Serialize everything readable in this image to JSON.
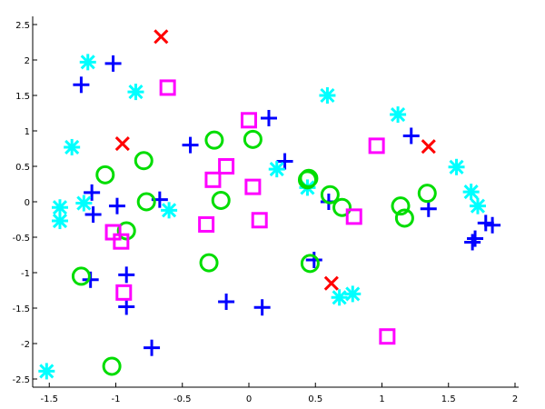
{
  "chart_data": {
    "type": "scatter",
    "title": "",
    "xlabel": "",
    "ylabel": "",
    "xlim": [
      -1.6,
      2.0
    ],
    "ylim": [
      -2.6,
      2.6
    ],
    "xticks": [
      "-1.5",
      "-1",
      "-0.5",
      "0",
      "0.5",
      "1",
      "1.5",
      "2"
    ],
    "xtick_values": [
      -1.5,
      -1,
      -0.5,
      0,
      0.5,
      1,
      1.5,
      2
    ],
    "yticks": [
      "2.5",
      "2",
      "1.5",
      "1",
      "0.5",
      "0",
      "-0.5",
      "-1",
      "-1.5",
      "-2",
      "-2.5"
    ],
    "ytick_values": [
      2.5,
      2,
      1.5,
      1,
      0.5,
      0,
      -0.5,
      -1,
      -1.5,
      -2,
      -2.5
    ],
    "grid": false,
    "legend": false,
    "series": [
      {
        "marker": "plus",
        "color": "#0000ff",
        "points": [
          [
            -1.26,
            1.65
          ],
          [
            -1.02,
            1.95
          ],
          [
            0.15,
            1.18
          ],
          [
            -0.44,
            0.8
          ],
          [
            1.22,
            0.93
          ],
          [
            0.27,
            0.57
          ],
          [
            -1.18,
            0.13
          ],
          [
            -1.17,
            -0.18
          ],
          [
            -0.99,
            -0.06
          ],
          [
            -0.67,
            0.03
          ],
          [
            0.6,
            0.0
          ],
          [
            1.35,
            -0.1
          ],
          [
            1.78,
            -0.3
          ],
          [
            1.83,
            -0.33
          ],
          [
            1.7,
            -0.52
          ],
          [
            1.68,
            -0.57
          ],
          [
            -1.19,
            -1.1
          ],
          [
            -0.92,
            -1.03
          ],
          [
            -0.92,
            -1.48
          ],
          [
            -0.17,
            -1.41
          ],
          [
            0.1,
            -1.49
          ],
          [
            0.49,
            -0.82
          ],
          [
            -0.73,
            -2.06
          ]
        ]
      },
      {
        "marker": "asterisk",
        "color": "#00ffff",
        "points": [
          [
            -1.21,
            1.97
          ],
          [
            -0.85,
            1.55
          ],
          [
            0.59,
            1.5
          ],
          [
            1.12,
            1.23
          ],
          [
            -1.33,
            0.77
          ],
          [
            1.56,
            0.49
          ],
          [
            0.21,
            0.46
          ],
          [
            0.44,
            0.2
          ],
          [
            1.67,
            0.14
          ],
          [
            1.72,
            -0.06
          ],
          [
            -1.24,
            -0.02
          ],
          [
            -1.42,
            -0.08
          ],
          [
            -1.42,
            -0.27
          ],
          [
            -0.6,
            -0.12
          ],
          [
            0.68,
            -1.35
          ],
          [
            0.78,
            -1.3
          ],
          [
            -1.52,
            -2.39
          ]
        ]
      },
      {
        "marker": "circle",
        "color": "#00dd00",
        "points": [
          [
            -0.26,
            0.87
          ],
          [
            0.03,
            0.88
          ],
          [
            -0.79,
            0.58
          ],
          [
            -1.08,
            0.38
          ],
          [
            0.45,
            0.33
          ],
          [
            0.44,
            0.31
          ],
          [
            0.61,
            0.1
          ],
          [
            0.7,
            -0.08
          ],
          [
            1.14,
            -0.06
          ],
          [
            1.34,
            0.12
          ],
          [
            1.17,
            -0.23
          ],
          [
            -0.21,
            0.02
          ],
          [
            -0.77,
            0.0
          ],
          [
            -0.92,
            -0.41
          ],
          [
            -1.26,
            -1.05
          ],
          [
            -0.3,
            -0.86
          ],
          [
            0.46,
            -0.87
          ],
          [
            -1.03,
            -2.32
          ]
        ]
      },
      {
        "marker": "square",
        "color": "#ff00ff",
        "points": [
          [
            -0.61,
            1.61
          ],
          [
            0.0,
            1.15
          ],
          [
            0.96,
            0.79
          ],
          [
            -0.17,
            0.5
          ],
          [
            -0.27,
            0.31
          ],
          [
            0.03,
            0.21
          ],
          [
            0.08,
            -0.26
          ],
          [
            -0.32,
            -0.32
          ],
          [
            0.79,
            -0.21
          ],
          [
            -1.02,
            -0.43
          ],
          [
            -0.96,
            -0.56
          ],
          [
            -0.94,
            -1.28
          ],
          [
            1.04,
            -1.9
          ]
        ]
      },
      {
        "marker": "cross",
        "color": "#ff0000",
        "points": [
          [
            -0.66,
            2.33
          ],
          [
            -0.95,
            0.82
          ],
          [
            1.35,
            0.78
          ],
          [
            0.62,
            -1.15
          ]
        ]
      }
    ]
  }
}
